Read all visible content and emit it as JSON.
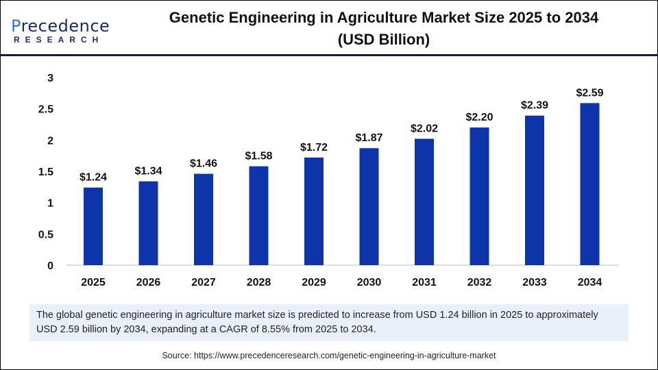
{
  "logo": {
    "text": "Precedence",
    "subtext": "RESEARCH"
  },
  "title": "Genetic Engineering in Agriculture Market Size 2025 to 2034",
  "subtitle": "(USD Billion)",
  "chart_data": {
    "type": "bar",
    "title": "Genetic Engineering in Agriculture Market Size 2025 to 2034 (USD Billion)",
    "categories": [
      "2025",
      "2026",
      "2027",
      "2028",
      "2029",
      "2030",
      "2031",
      "2032",
      "2033",
      "2034"
    ],
    "values": [
      1.24,
      1.34,
      1.46,
      1.58,
      1.72,
      1.87,
      2.02,
      2.2,
      2.39,
      2.59
    ],
    "data_labels": [
      "$1.24",
      "$1.34",
      "$1.46",
      "$1.58",
      "$1.72",
      "$1.87",
      "$2.02",
      "$2.20",
      "$2.39",
      "$2.59"
    ],
    "ylim": [
      0,
      3
    ],
    "yticks": [
      "0",
      "0.5",
      "1",
      "1.5",
      "2",
      "2.5",
      "3"
    ],
    "grid": false,
    "bar_color": "#0d34a8"
  },
  "note": "The global genetic engineering in agriculture market size is predicted to increase from USD 1.24 billion in 2025 to approximately USD 2.59 billion by 2034, expanding at a CAGR of 8.55% from 2025 to 2034.",
  "source": "Source: https://www.precedenceresearch.com/genetic-engineering-in-agriculture-market"
}
